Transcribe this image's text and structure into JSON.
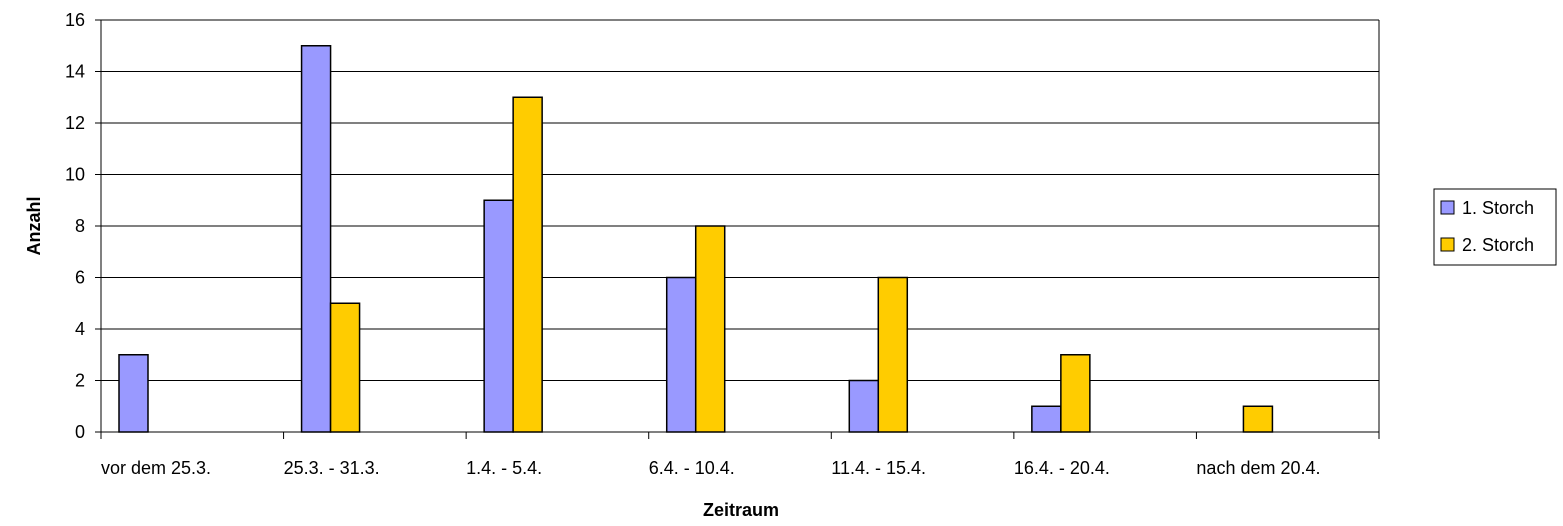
{
  "chart_data": {
    "type": "bar",
    "title": "",
    "xlabel": "Zeitraum",
    "ylabel": "Anzahl",
    "ylim": [
      0,
      16
    ],
    "yticks": [
      0,
      2,
      4,
      6,
      8,
      10,
      12,
      14,
      16
    ],
    "categories": [
      "vor dem 25.3.",
      "25.3. - 31.3.",
      "1.4. - 5.4.",
      "6.4. - 10.4.",
      "11.4. - 15.4.",
      "16.4. - 20.4.",
      "nach dem 20.4."
    ],
    "series": [
      {
        "name": "1. Storch",
        "color": "#9999ff",
        "values": [
          3,
          15,
          9,
          6,
          2,
          1,
          0
        ]
      },
      {
        "name": "2. Storch",
        "color": "#ffcc00",
        "values": [
          0,
          5,
          13,
          8,
          6,
          3,
          1
        ]
      }
    ],
    "grid": true,
    "legend_position": "right"
  }
}
